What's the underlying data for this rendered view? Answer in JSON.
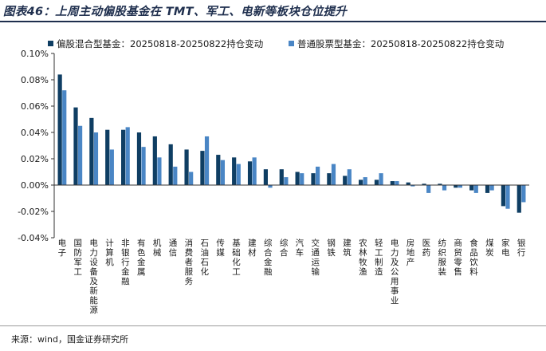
{
  "title": "图表46：上周主动偏股基金在 TMT、军工、电新等板块仓位提升",
  "source": "来源：wind，国金证券研究所",
  "colors": {
    "series1": "#0f3e63",
    "series2": "#4a86c5"
  },
  "chart_data": {
    "type": "bar",
    "title": "",
    "xlabel": "",
    "ylabel": "",
    "ylim": [
      -0.04,
      0.1
    ],
    "yticks": [
      -0.04,
      -0.02,
      0.0,
      0.02,
      0.04,
      0.06,
      0.08,
      0.1
    ],
    "ytick_labels": [
      "-0.04%",
      "-0.02%",
      "0.00%",
      "0.02%",
      "0.04%",
      "0.06%",
      "0.08%",
      "0.10%"
    ],
    "legend_position": "top",
    "grid": false,
    "categories": [
      "电子",
      "国防军工",
      "电力设备及新能源",
      "计算机",
      "非银行金融",
      "有色金属",
      "机械",
      "通信",
      "消费者服务",
      "石油石化",
      "传媒",
      "基础化工",
      "建材",
      "综合金融",
      "综合",
      "汽车",
      "交通运输",
      "钢铁",
      "建筑",
      "农林牧渔",
      "轻工制造",
      "电力及公用事业",
      "房地产",
      "医药",
      "纺织服装",
      "商贸零售",
      "食品饮料",
      "煤炭",
      "家电",
      "银行"
    ],
    "series": [
      {
        "name": "偏股混合型基金：20250818-20250822持仓变动",
        "values": [
          0.084,
          0.059,
          0.051,
          0.042,
          0.042,
          0.04,
          0.037,
          0.031,
          0.027,
          0.026,
          0.023,
          0.021,
          0.018,
          0.012,
          0.012,
          0.01,
          0.009,
          0.009,
          0.007,
          0.004,
          0.004,
          0.003,
          0.002,
          0.001,
          0.001,
          -0.002,
          -0.004,
          -0.006,
          -0.016,
          -0.021
        ]
      },
      {
        "name": "普通股票型基金：20250818-20250822持仓变动",
        "values": [
          0.072,
          0.045,
          0.04,
          0.027,
          0.044,
          0.029,
          0.021,
          0.014,
          0.01,
          0.037,
          0.019,
          0.016,
          0.021,
          -0.002,
          0.006,
          0.009,
          0.014,
          0.016,
          0.012,
          0.006,
          0.009,
          0.003,
          -0.001,
          -0.006,
          -0.004,
          -0.002,
          -0.006,
          -0.004,
          -0.018,
          -0.013
        ]
      }
    ]
  }
}
